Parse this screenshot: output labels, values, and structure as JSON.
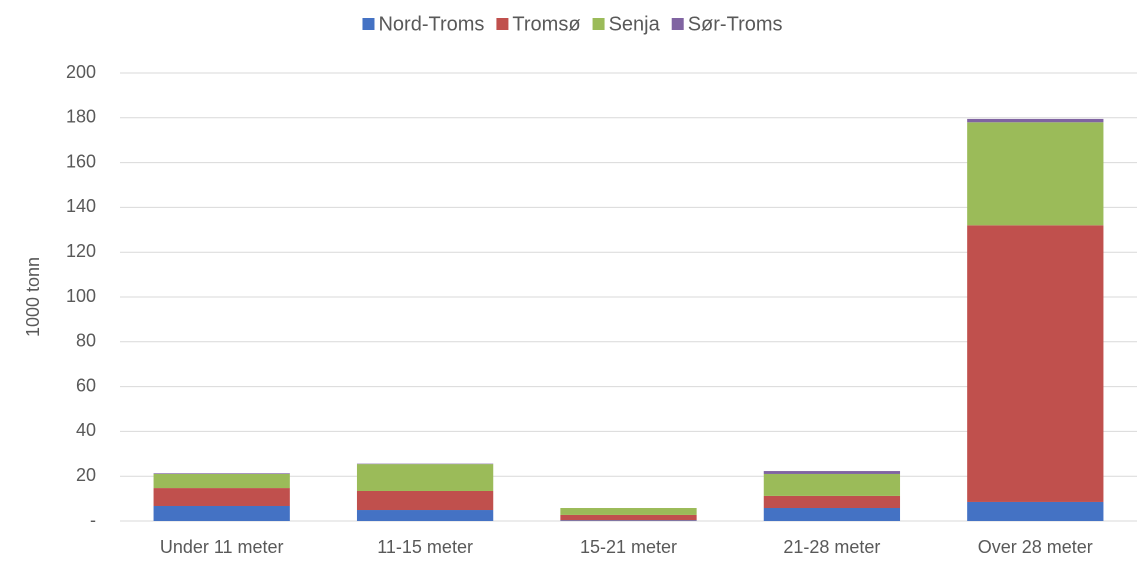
{
  "chart_data": {
    "type": "stacked_bar",
    "y_label": "1000 tonn",
    "categories": [
      "Under 11 meter",
      "11-15 meter",
      "15-21 meter",
      "21-28 meter",
      "Over 28 meter"
    ],
    "series": [
      {
        "name": "Nord-Troms",
        "color": "#4472c4",
        "values": [
          6.7,
          4.9,
          0.3,
          5.8,
          8.5
        ]
      },
      {
        "name": "Tromsø",
        "color": "#c0504d",
        "values": [
          8,
          8.5,
          2.4,
          5.4,
          123.5
        ]
      },
      {
        "name": "Senja",
        "color": "#9bbb59",
        "values": [
          6.3,
          12,
          3.1,
          9.8,
          46
        ]
      },
      {
        "name": "Sør-Troms",
        "color": "#8064a2",
        "values": [
          0.3,
          0.2,
          0,
          1.3,
          1.5
        ]
      }
    ],
    "ylim": [
      0,
      200
    ],
    "yticks": [
      {
        "value": 0,
        "label": "-"
      },
      20,
      40,
      60,
      80,
      100,
      120,
      140,
      160,
      180,
      200
    ],
    "grid": true,
    "legend": "top"
  }
}
